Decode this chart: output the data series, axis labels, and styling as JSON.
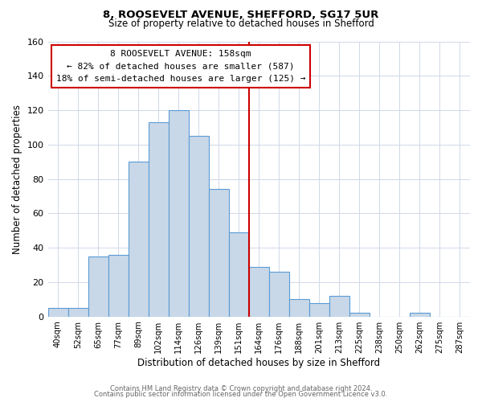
{
  "title": "8, ROOSEVELT AVENUE, SHEFFORD, SG17 5UR",
  "subtitle": "Size of property relative to detached houses in Shefford",
  "xlabel": "Distribution of detached houses by size in Shefford",
  "ylabel": "Number of detached properties",
  "categories": [
    "40sqm",
    "52sqm",
    "65sqm",
    "77sqm",
    "89sqm",
    "102sqm",
    "114sqm",
    "126sqm",
    "139sqm",
    "151sqm",
    "164sqm",
    "176sqm",
    "188sqm",
    "201sqm",
    "213sqm",
    "225sqm",
    "238sqm",
    "250sqm",
    "262sqm",
    "275sqm",
    "287sqm"
  ],
  "values": [
    5,
    5,
    35,
    36,
    90,
    113,
    120,
    105,
    74,
    49,
    29,
    26,
    10,
    8,
    12,
    2,
    0,
    0,
    2,
    0,
    0
  ],
  "bar_color": "#c8d8e8",
  "bar_edge_color": "#5b9bd5",
  "vline_x": 9.5,
  "vline_color": "#cc0000",
  "annotation_title": "8 ROOSEVELT AVENUE: 158sqm",
  "annotation_line1": "← 82% of detached houses are smaller (587)",
  "annotation_line2": "18% of semi-detached houses are larger (125) →",
  "annotation_box_color": "#ffffff",
  "annotation_box_edge": "#cc0000",
  "ylim": [
    0,
    160
  ],
  "yticks": [
    0,
    20,
    40,
    60,
    80,
    100,
    120,
    140,
    160
  ],
  "footer_line1": "Contains HM Land Registry data © Crown copyright and database right 2024.",
  "footer_line2": "Contains public sector information licensed under the Open Government Licence v3.0.",
  "background_color": "#ffffff",
  "grid_color": "#d0d8e8"
}
